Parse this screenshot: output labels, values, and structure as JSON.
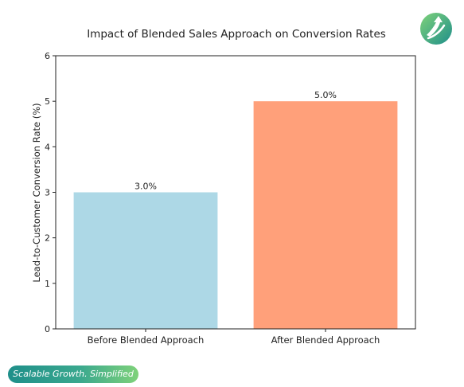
{
  "chart_data": {
    "type": "bar",
    "title": "Impact of Blended Sales Approach on Conversion Rates",
    "xlabel": "",
    "ylabel": "Lead-to-Customer Conversion Rate (%)",
    "categories": [
      "Before Blended Approach",
      "After Blended Approach"
    ],
    "values": [
      3.0,
      5.0
    ],
    "data_labels": [
      "3.0%",
      "5.0%"
    ],
    "ylim": [
      0,
      6
    ],
    "yticks": [
      0,
      1,
      2,
      3,
      4,
      5,
      6
    ],
    "bar_colors": [
      "#add8e6",
      "#ffa07a"
    ],
    "grid": false,
    "legend": "none"
  },
  "branding": {
    "tagline": "Scalable Growth. Simplified",
    "logo_icon": "upward-arrow-circle-logo",
    "colors": {
      "primary": "#1f8f8a",
      "accent": "#7fd27a"
    }
  }
}
